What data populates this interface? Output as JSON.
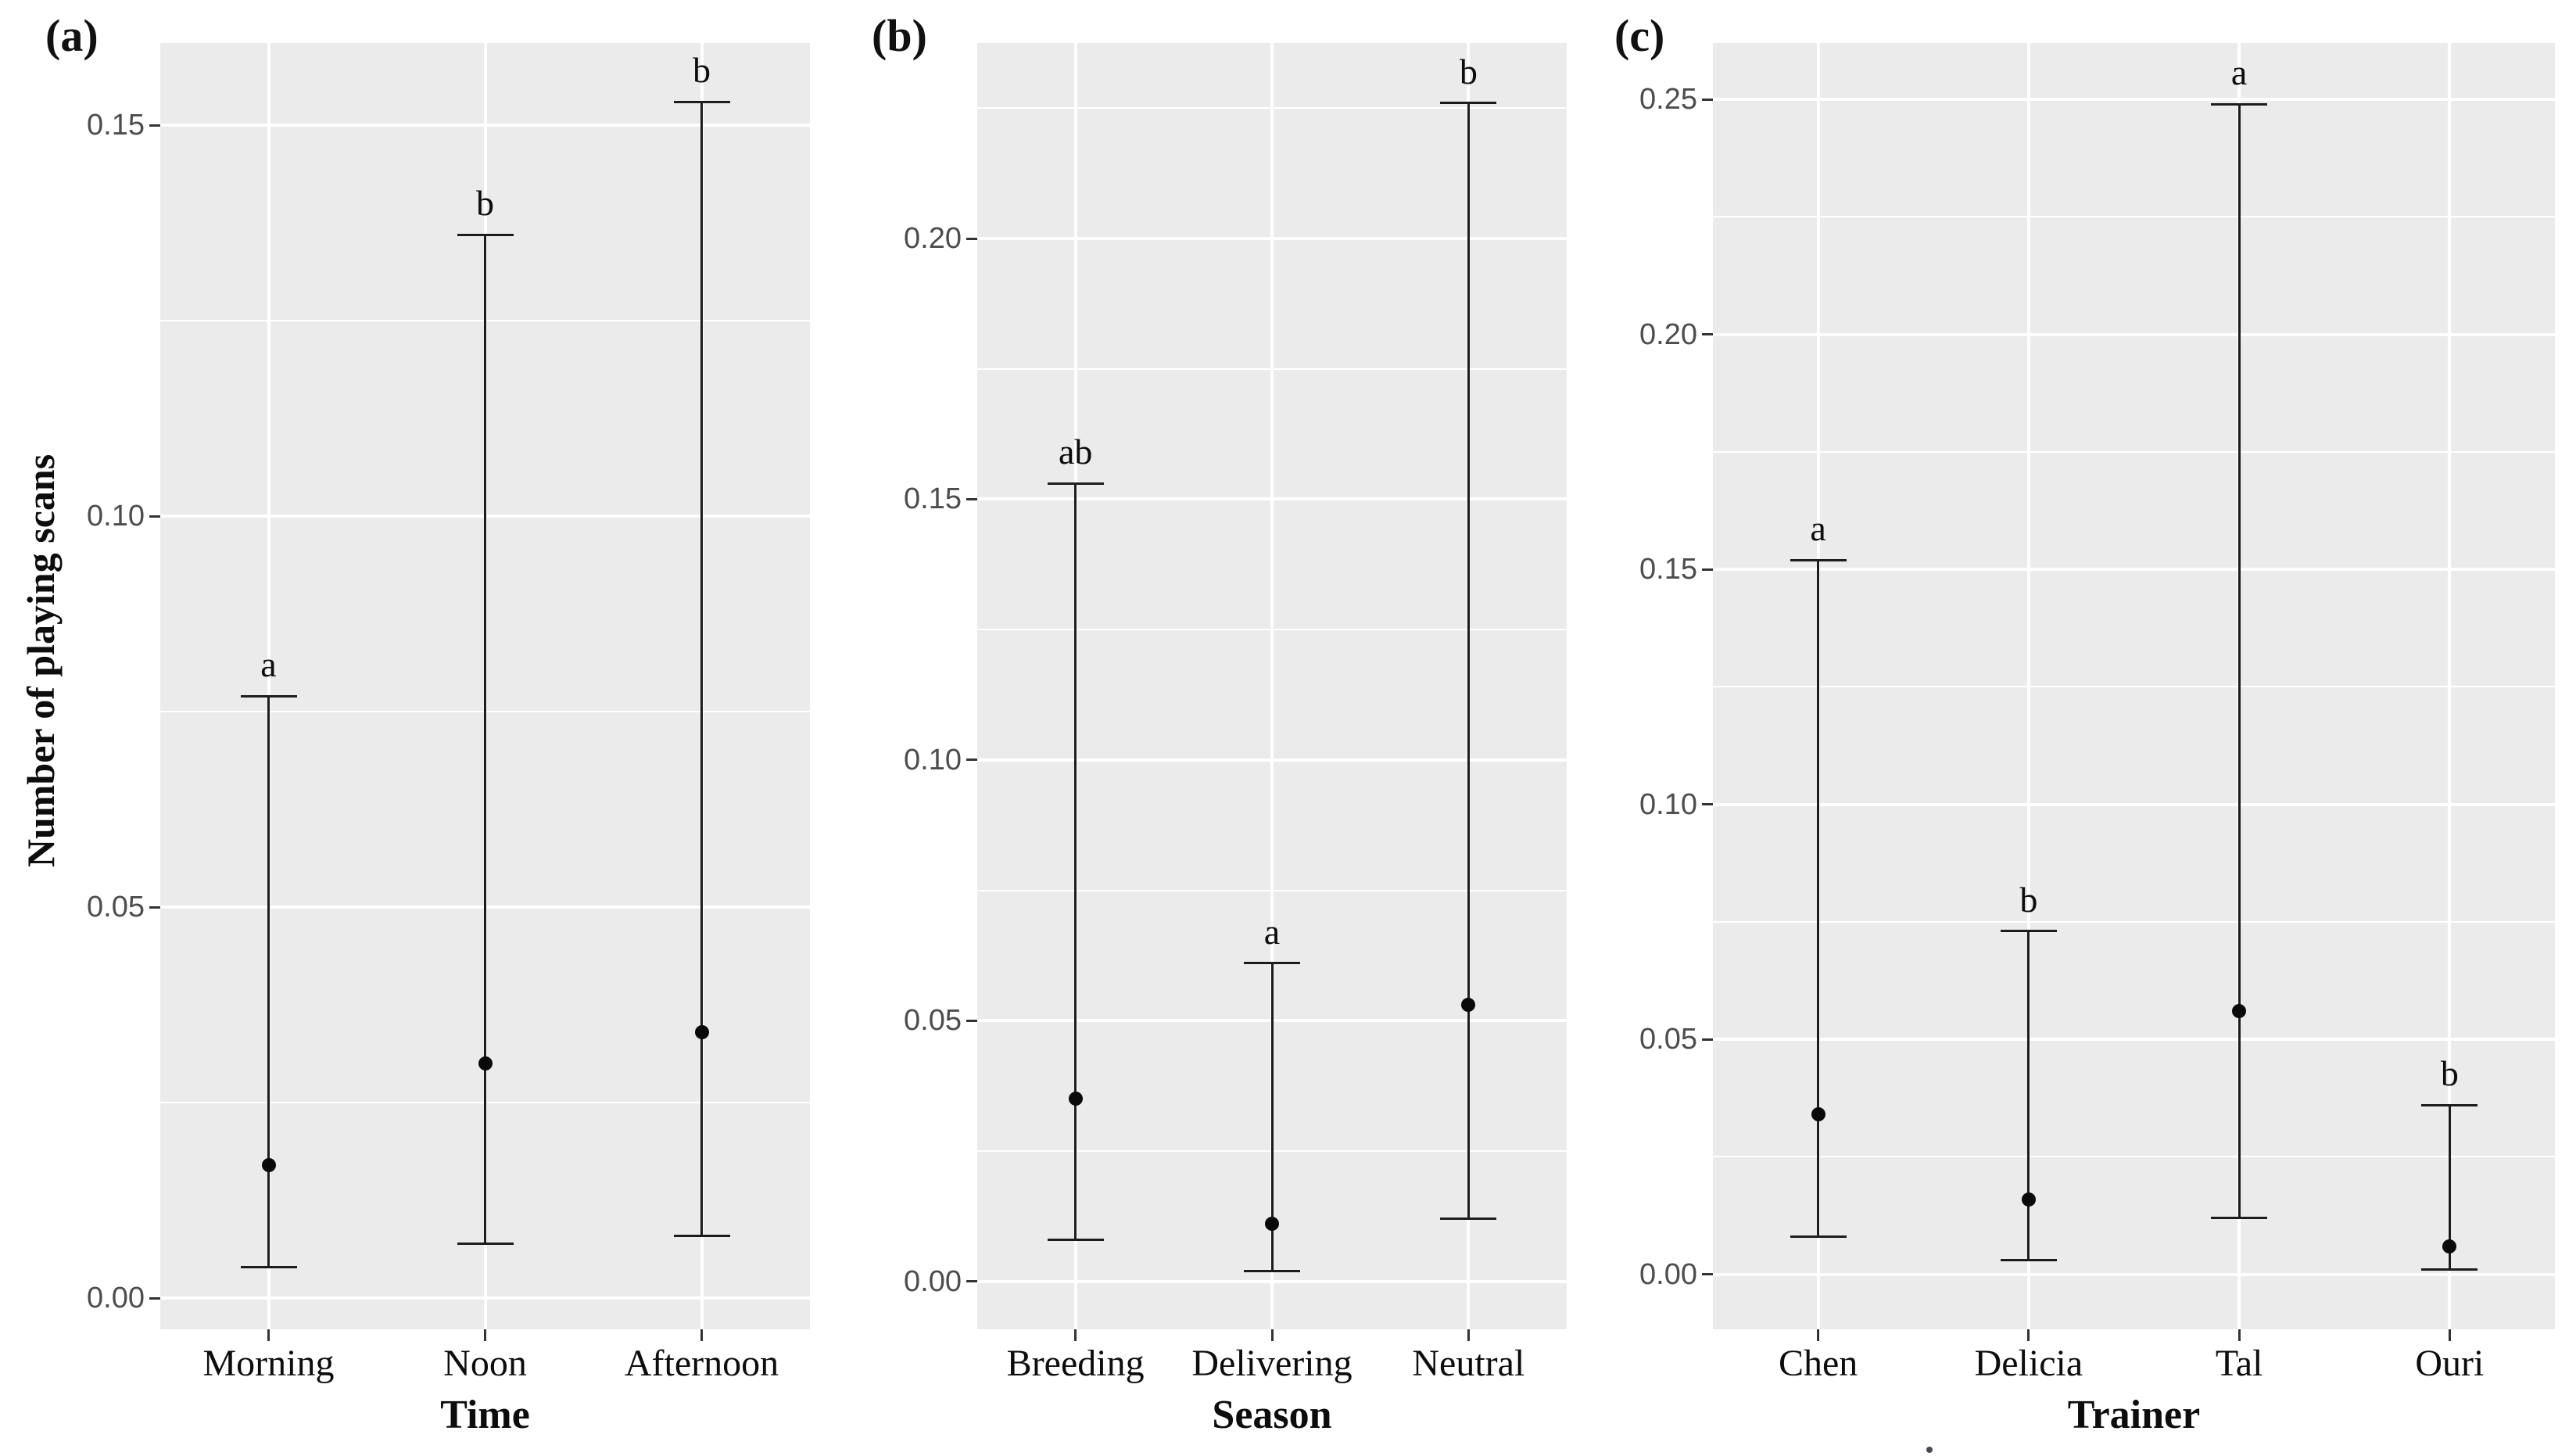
{
  "ylabel": "Number of playing scans",
  "colors": {
    "panel_background": "#ebebeb",
    "gridline": "#ffffff",
    "error_bar": "#1c1c1c",
    "point": "#0a0a0a",
    "tick_text": "#4d4d4d",
    "label_text": "#0d0d0d"
  },
  "chart_data": [
    {
      "type": "scatter",
      "panel_tag": "(a)",
      "title": "",
      "xlabel": "Time",
      "ylabel": "Number of playing scans",
      "legend": "none",
      "grid": "major and minor horizontal white lines on gray panel; vertical white line per category",
      "categories": [
        "Morning",
        "Noon",
        "Afternoon"
      ],
      "ylim": [
        -0.004,
        0.1605
      ],
      "ytick_labels": [
        "0.00",
        "0.05",
        "0.10",
        "0.15"
      ],
      "minor_grid_step": 0.025,
      "points": [
        {
          "category": "Morning",
          "mean": 0.017,
          "ci_low": 0.004,
          "ci_high": 0.077,
          "sig_letter": "a"
        },
        {
          "category": "Noon",
          "mean": 0.03,
          "ci_low": 0.007,
          "ci_high": 0.136,
          "sig_letter": "b"
        },
        {
          "category": "Afternoon",
          "mean": 0.034,
          "ci_low": 0.008,
          "ci_high": 0.153,
          "sig_letter": "b"
        }
      ]
    },
    {
      "type": "scatter",
      "panel_tag": "(b)",
      "title": "",
      "xlabel": "Season",
      "ylabel": "Number of playing scans",
      "legend": "none",
      "grid": "major and minor horizontal white lines on gray panel; vertical white line per category",
      "categories": [
        "Breeding",
        "Delivering",
        "Neutral"
      ],
      "ylim": [
        -0.0092,
        0.2375
      ],
      "ytick_labels": [
        "0.00",
        "0.05",
        "0.10",
        "0.15",
        "0.20"
      ],
      "minor_grid_step": 0.025,
      "points": [
        {
          "category": "Breeding",
          "mean": 0.035,
          "ci_low": 0.008,
          "ci_high": 0.153,
          "sig_letter": "ab"
        },
        {
          "category": "Delivering",
          "mean": 0.011,
          "ci_low": 0.002,
          "ci_high": 0.061,
          "sig_letter": "a"
        },
        {
          "category": "Neutral",
          "mean": 0.053,
          "ci_low": 0.012,
          "ci_high": 0.226,
          "sig_letter": "b"
        }
      ]
    },
    {
      "type": "scatter",
      "panel_tag": "(c)",
      "title": "",
      "xlabel": "Trainer",
      "ylabel": "Number of playing scans",
      "legend": "none",
      "grid": "major and minor horizontal white lines on gray panel; vertical white line per category",
      "categories": [
        "Chen",
        "Delicia",
        "Tal",
        "Ouri"
      ],
      "ylim": [
        -0.0117,
        0.262
      ],
      "ytick_labels": [
        "0.00",
        "0.05",
        "0.10",
        "0.15",
        "0.20",
        "0.25"
      ],
      "minor_grid_step": 0.025,
      "points": [
        {
          "category": "Chen",
          "mean": 0.034,
          "ci_low": 0.008,
          "ci_high": 0.152,
          "sig_letter": "a"
        },
        {
          "category": "Delicia",
          "mean": 0.016,
          "ci_low": 0.003,
          "ci_high": 0.073,
          "sig_letter": "b"
        },
        {
          "category": "Tal",
          "mean": 0.056,
          "ci_low": 0.012,
          "ci_high": 0.249,
          "sig_letter": "a"
        },
        {
          "category": "Ouri",
          "mean": 0.006,
          "ci_low": 0.001,
          "ci_high": 0.036,
          "sig_letter": "b"
        }
      ]
    }
  ]
}
